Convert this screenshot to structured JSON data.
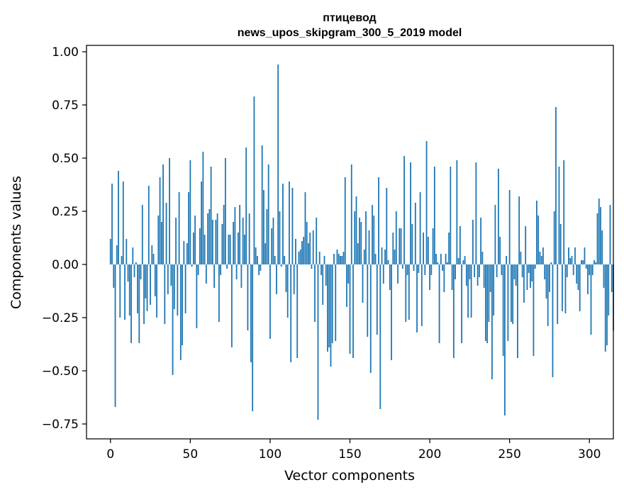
{
  "chart_data": {
    "type": "bar",
    "title_line1": "птицевод",
    "title_line2": "news_upos_skipgram_300_5_2019 model",
    "xlabel": "Vector components",
    "ylabel": "Components values",
    "xlim": [
      -15,
      315
    ],
    "ylim": [
      -0.82,
      1.03
    ],
    "x_ticks": [
      0,
      50,
      100,
      150,
      200,
      250,
      300
    ],
    "x_tick_labels": [
      "0",
      "50",
      "100",
      "150",
      "200",
      "250",
      "300"
    ],
    "y_ticks": [
      -0.75,
      -0.5,
      -0.25,
      0.0,
      0.25,
      0.5,
      0.75,
      1.0
    ],
    "y_tick_labels": [
      "−0.75",
      "−0.50",
      "−0.25",
      "0.00",
      "0.25",
      "0.50",
      "0.75",
      "1.00"
    ],
    "grid": false,
    "bar_color": "#1f77b4",
    "values": [
      0.12,
      0.38,
      -0.11,
      -0.67,
      0.09,
      0.44,
      -0.25,
      0.04,
      0.39,
      -0.26,
      0.12,
      -0.08,
      -0.24,
      -0.37,
      0.08,
      -0.06,
      0.01,
      -0.23,
      -0.37,
      -0.07,
      0.28,
      -0.28,
      -0.16,
      -0.22,
      0.37,
      -0.19,
      0.09,
      0.05,
      -0.15,
      -0.25,
      0.23,
      0.41,
      0.2,
      0.47,
      -0.28,
      0.29,
      -0.14,
      0.5,
      -0.1,
      -0.52,
      -0.21,
      0.22,
      -0.24,
      0.34,
      -0.45,
      -0.38,
      0.11,
      -0.23,
      0.1,
      0.34,
      0.49,
      -0.01,
      0.15,
      0.23,
      -0.3,
      -0.05,
      0.17,
      0.39,
      0.53,
      0.14,
      -0.09,
      0.24,
      0.26,
      0.46,
      0.21,
      -0.11,
      0.21,
      0.24,
      -0.27,
      -0.05,
      0.19,
      0.28,
      0.5,
      -0.02,
      0.14,
      0.14,
      -0.39,
      0.2,
      0.27,
      -0.07,
      0.15,
      0.28,
      -0.11,
      0.22,
      0.14,
      0.55,
      -0.31,
      0.24,
      -0.46,
      -0.69,
      0.79,
      0.08,
      0.04,
      -0.05,
      -0.03,
      0.56,
      0.35,
      0.1,
      0.26,
      0.47,
      -0.35,
      0.17,
      0.22,
      0.04,
      -0.14,
      0.94,
      0.25,
      -0.01,
      0.38,
      0.04,
      -0.13,
      -0.25,
      0.39,
      -0.46,
      0.36,
      -0.14,
      0.12,
      -0.44,
      0.06,
      0.07,
      0.11,
      0.13,
      0.34,
      0.2,
      0.1,
      0.15,
      -0.02,
      0.16,
      -0.27,
      0.22,
      -0.73,
      0.06,
      -0.05,
      -0.19,
      0.04,
      -0.1,
      -0.41,
      -0.39,
      -0.48,
      -0.37,
      0.05,
      -0.36,
      0.07,
      0.05,
      0.04,
      0.04,
      0.06,
      0.41,
      -0.2,
      -0.09,
      -0.42,
      0.47,
      -0.44,
      0.25,
      0.32,
      0.1,
      0.22,
      0.2,
      -0.18,
      0.07,
      0.25,
      -0.34,
      0.16,
      -0.51,
      0.28,
      0.23,
      0.05,
      -0.33,
      0.41,
      -0.68,
      0.08,
      -0.09,
      0.07,
      0.36,
      0.02,
      -0.12,
      -0.45,
      0.15,
      0.07,
      0.25,
      -0.09,
      0.17,
      0.17,
      -0.02,
      0.51,
      -0.27,
      -0.05,
      -0.26,
      0.48,
      0.19,
      -0.03,
      0.29,
      -0.32,
      -0.04,
      0.34,
      -0.29,
      0.15,
      -0.05,
      0.58,
      0.13,
      -0.12,
      -0.05,
      0.17,
      0.46,
      0.05,
      0.01,
      -0.37,
      0.05,
      -0.03,
      -0.13,
      0.05,
      0.01,
      0.15,
      0.46,
      -0.12,
      -0.44,
      -0.07,
      0.49,
      0.03,
      0.18,
      -0.37,
      0.02,
      0.04,
      -0.1,
      -0.25,
      -0.07,
      -0.25,
      0.21,
      -0.06,
      0.48,
      -0.1,
      -0.06,
      0.22,
      0.06,
      -0.11,
      -0.36,
      -0.37,
      -0.27,
      -0.13,
      -0.54,
      -0.24,
      0.28,
      -0.06,
      0.45,
      0.13,
      -0.05,
      -0.43,
      -0.71,
      0.04,
      -0.36,
      0.35,
      -0.27,
      -0.28,
      -0.07,
      -0.1,
      -0.44,
      0.32,
      0.06,
      -0.06,
      -0.18,
      0.18,
      -0.12,
      -0.04,
      -0.11,
      -0.08,
      -0.43,
      -0.02,
      0.3,
      0.23,
      0.06,
      0.04,
      0.08,
      -0.07,
      -0.16,
      -0.29,
      -0.13,
      0.01,
      -0.53,
      0.25,
      0.74,
      -0.28,
      0.46,
      0.19,
      -0.22,
      0.49,
      -0.23,
      -0.06,
      0.08,
      0.03,
      0.04,
      -0.05,
      0.08,
      -0.09,
      -0.12,
      -0.22,
      0.02,
      0.02,
      0.08,
      -0.02,
      -0.14,
      -0.05,
      -0.33,
      -0.05,
      0.02,
      0.01,
      0.24,
      0.31,
      0.27,
      0.16,
      -0.11,
      -0.41,
      -0.38,
      -0.24,
      0.28,
      -0.13,
      -0.31
    ]
  }
}
